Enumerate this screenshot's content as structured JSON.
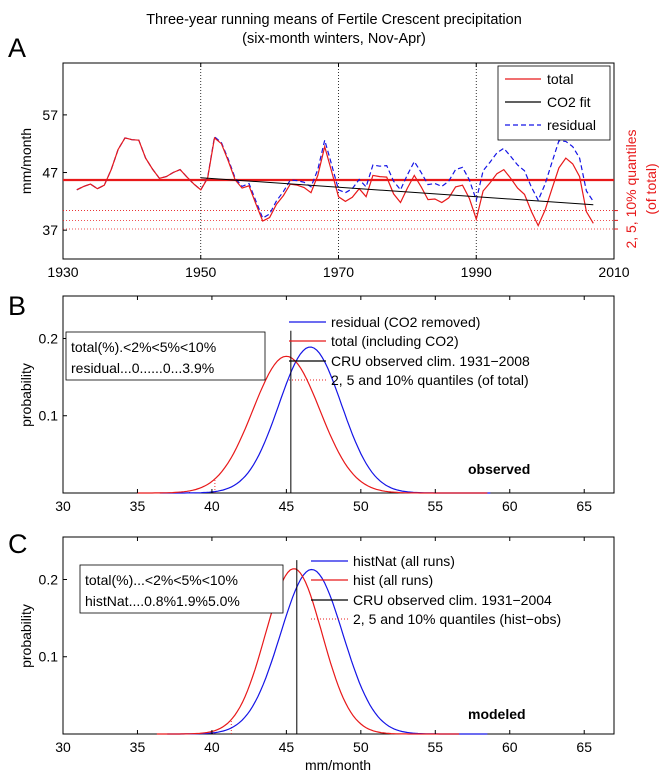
{
  "title_line1": "Three-year running means of Fertile Crescent precipitation",
  "title_line2": "(six-month winters, Nov-Apr)",
  "colors": {
    "total": "#e8191a",
    "fit": "#000000",
    "residual": "#1515e6",
    "grid": "#000000"
  },
  "chart_data": [
    {
      "panel_label": "A",
      "type": "line",
      "ylabel": "mm/month",
      "right_ylabel_line1": "2, 5, 10% quantiles",
      "right_ylabel_line2": "(of total)",
      "xlim": [
        1930,
        2010
      ],
      "ylim": [
        32,
        66
      ],
      "x_ticks": [
        "1930",
        "1950",
        "1970",
        "1990",
        "2010"
      ],
      "y_ticks": [
        "37",
        "47",
        "57"
      ],
      "x_grid_years": [
        1950,
        1970,
        1990
      ],
      "mean_line": 45.7,
      "quantile_lines": [
        37.2,
        38.7,
        40.4
      ],
      "legend": [
        {
          "label": "total",
          "style": "solid",
          "color": "#e8191a"
        },
        {
          "label": "CO2 fit",
          "style": "solid",
          "color": "#000000"
        },
        {
          "label": "residual",
          "style": "dashed",
          "color": "#1515e6"
        }
      ],
      "series": [
        {
          "name": "total",
          "years": [
            1932,
            1933,
            1934,
            1935,
            1936,
            1937,
            1938,
            1939,
            1940,
            1941,
            1942,
            1943,
            1944,
            1945,
            1946,
            1947,
            1948,
            1949,
            1950,
            1951,
            1952,
            1953,
            1954,
            1955,
            1956,
            1957,
            1958,
            1959,
            1960,
            1961,
            1962,
            1963,
            1964,
            1965,
            1966,
            1967,
            1968,
            1969,
            1970,
            1971,
            1972,
            1973,
            1974,
            1975,
            1976,
            1977,
            1978,
            1979,
            1980,
            1981,
            1982,
            1983,
            1984,
            1985,
            1986,
            1987,
            1988,
            1989,
            1990,
            1991,
            1992,
            1993,
            1994,
            1995,
            1996,
            1997,
            1998,
            1999,
            2000,
            2001,
            2002,
            2003,
            2004,
            2005,
            2006,
            2007
          ],
          "values": [
            44,
            44.6,
            45,
            44.2,
            44.8,
            47.5,
            51,
            53,
            52.7,
            52.6,
            49.5,
            47.6,
            46,
            46.3,
            47,
            47.5,
            46.2,
            45,
            44,
            46,
            53,
            52,
            49,
            45.7,
            44.3,
            44.7,
            41.6,
            38.6,
            39.2,
            41.5,
            43,
            45,
            44.8,
            44.4,
            43.5,
            46.5,
            51.5,
            47.2,
            42.8,
            42,
            42.7,
            44.2,
            42.8,
            46.5,
            46.3,
            46.2,
            43.3,
            41.8,
            44.3,
            46.5,
            44.5,
            42.3,
            42.4,
            41.8,
            42.6,
            44.5,
            44.8,
            42.5,
            38.9,
            43.8,
            45.2,
            46.8,
            47.5,
            46,
            44.3,
            43.2,
            40.3,
            37.8,
            40.5,
            44.2,
            47.8,
            49.5,
            48.5,
            46.3,
            40.2,
            38.2
          ]
        },
        {
          "name": "CO2 fit",
          "years": [
            1950,
            2007
          ],
          "values": [
            46.1,
            41.4
          ]
        },
        {
          "name": "residual",
          "years": [
            1932,
            1933,
            1934,
            1935,
            1936,
            1937,
            1938,
            1939,
            1940,
            1941,
            1942,
            1943,
            1944,
            1945,
            1946,
            1947,
            1948,
            1949,
            1950,
            1951,
            1952,
            1953,
            1954,
            1955,
            1956,
            1957,
            1958,
            1959,
            1960,
            1961,
            1962,
            1963,
            1964,
            1965,
            1966,
            1967,
            1968,
            1969,
            1970,
            1971,
            1972,
            1973,
            1974,
            1975,
            1976,
            1977,
            1978,
            1979,
            1980,
            1981,
            1982,
            1983,
            1984,
            1985,
            1986,
            1987,
            1988,
            1989,
            1990,
            1991,
            1992,
            1993,
            1994,
            1995,
            1996,
            1997,
            1998,
            1999,
            2000,
            2001,
            2002,
            2003,
            2004,
            2005,
            2006,
            2007
          ],
          "values": [
            44,
            44.6,
            45,
            44.2,
            44.8,
            47.5,
            51,
            53,
            52.7,
            52.6,
            49.5,
            47.6,
            46,
            46.3,
            47,
            47.5,
            46.2,
            45,
            44,
            46.1,
            53.2,
            52.2,
            49.3,
            46,
            44.6,
            45.1,
            42.1,
            39.1,
            39.8,
            42.1,
            43.7,
            45.7,
            45.6,
            45.3,
            44.5,
            47.5,
            52.6,
            48.4,
            44,
            43.5,
            44.2,
            45.8,
            44.5,
            48.3,
            48.1,
            48.2,
            45.5,
            44,
            46.6,
            48.9,
            47,
            44.9,
            45.1,
            44.6,
            45.5,
            47.5,
            47.9,
            45.7,
            42.2,
            47.3,
            48.8,
            50.4,
            51.2,
            49.8,
            48.3,
            47.3,
            44.5,
            42.2,
            45,
            48.8,
            52.5,
            52.4,
            51.5,
            49.5,
            43.8,
            42
          ]
        }
      ]
    },
    {
      "panel_label": "B",
      "type": "line",
      "ylabel": "probability",
      "xlim": [
        30,
        67
      ],
      "ylim": [
        0,
        0.255
      ],
      "x_ticks": [
        "30",
        "35",
        "40",
        "45",
        "50",
        "55",
        "60",
        "65"
      ],
      "y_ticks": [
        "0.1",
        "0.2"
      ],
      "legend": [
        {
          "label": "residual (CO2 removed)",
          "style": "solid",
          "color": "#1515e6"
        },
        {
          "label": "total (including CO2)",
          "style": "solid",
          "color": "#e8191a"
        },
        {
          "label": "CRU observed clim. 1931−2008",
          "style": "solid",
          "color": "#000000"
        },
        {
          "label": "2, 5 and 10% quantiles (of total)",
          "style": "dotted",
          "color": "#e8191a"
        }
      ],
      "info_box": [
        "total(%).<2%<5%<10%",
        "residual...0......0...3.9%"
      ],
      "annotation": "observed",
      "series": [
        {
          "name": "residual (CO2 removed)",
          "dist": "normal",
          "mean": 46.6,
          "sd": 2.1,
          "range": [
            36.5,
            58.7
          ],
          "peak": 0.189
        },
        {
          "name": "total (including CO2)",
          "dist": "normal",
          "mean": 45.0,
          "sd": 2.25,
          "range": [
            35.0,
            58.5
          ],
          "peak": 0.177
        }
      ],
      "clim_line": {
        "x": 45.3,
        "top": 0.21
      },
      "quantile_lines": [
        36.8,
        38.5,
        40.2
      ]
    },
    {
      "panel_label": "C",
      "type": "line",
      "ylabel": "probability",
      "xlabel": "mm/month",
      "xlim": [
        30,
        67
      ],
      "ylim": [
        0,
        0.255
      ],
      "x_ticks": [
        "30",
        "35",
        "40",
        "45",
        "50",
        "55",
        "60",
        "65"
      ],
      "y_ticks": [
        "0.1",
        "0.2"
      ],
      "legend": [
        {
          "label": "histNat (all runs)",
          "style": "solid",
          "color": "#1515e6"
        },
        {
          "label": "hist (all runs)",
          "style": "solid",
          "color": "#e8191a"
        },
        {
          "label": "CRU observed clim. 1931−2004",
          "style": "solid",
          "color": "#000000"
        },
        {
          "label": "2, 5 and 10% quantiles (hist−obs)",
          "style": "dotted",
          "color": "#e8191a"
        }
      ],
      "info_box": [
        "total(%)...<2%<5%<10%",
        "histNat....0.8%1.9%5.0%"
      ],
      "annotation": "modeled",
      "series": [
        {
          "name": "histNat (all runs)",
          "dist": "normal",
          "mean": 46.7,
          "sd": 2.1,
          "range": [
            37.0,
            58.5
          ],
          "peak": 0.213
        },
        {
          "name": "hist (all runs)",
          "dist": "normal",
          "mean": 45.5,
          "sd": 1.9,
          "range": [
            36.3,
            56.6
          ],
          "peak": 0.214
        }
      ],
      "clim_line": {
        "x": 45.7,
        "top": 0.225
      },
      "quantile_lines": [
        38.8,
        40.1,
        41.3
      ]
    }
  ]
}
